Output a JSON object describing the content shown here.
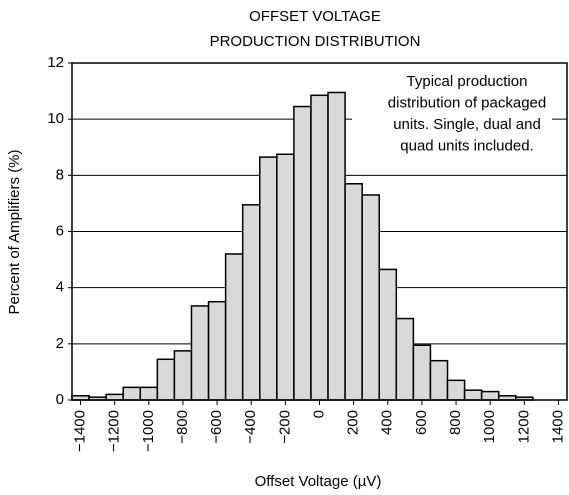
{
  "chart_data": {
    "type": "histogram",
    "title": [
      "OFFSET VOLTAGE",
      "PRODUCTION DISTRIBUTION"
    ],
    "x_label": "Offset Voltage (µV)",
    "y_label": "Percent of Amplifiers (%)",
    "annotation": [
      "Typical production",
      "distribution of packaged",
      "units. Single, dual and",
      "quad units included."
    ],
    "bins": [
      -1450,
      -1350,
      -1250,
      -1150,
      -1050,
      -950,
      -850,
      -750,
      -650,
      -550,
      -450,
      -350,
      -250,
      -150,
      -50,
      50,
      150,
      250,
      350,
      450,
      550,
      650,
      750,
      850,
      950,
      1050,
      1150,
      1250
    ],
    "values": [
      0.15,
      0.1,
      0.2,
      0.45,
      0.45,
      1.45,
      1.75,
      3.35,
      3.5,
      5.2,
      6.95,
      8.65,
      8.75,
      10.45,
      10.85,
      10.95,
      7.7,
      7.3,
      4.65,
      2.9,
      1.95,
      1.4,
      0.7,
      0.35,
      0.3,
      0.15,
      0.1
    ],
    "color": "#d9d9d9",
    "xlim": [
      -1450,
      1450
    ],
    "xticks": [
      {
        "value": -1400,
        "label": "−1400"
      },
      {
        "value": -1200,
        "label": "−1200"
      },
      {
        "value": -1000,
        "label": "−1000"
      },
      {
        "value": -800,
        "label": "−800"
      },
      {
        "value": -600,
        "label": "−600"
      },
      {
        "value": -400,
        "label": "−400"
      },
      {
        "value": -200,
        "label": "−200"
      },
      0,
      200,
      400,
      600,
      800,
      1000,
      1200,
      1400
    ],
    "ylim": [
      0,
      12
    ],
    "yticks": [
      0,
      2,
      4,
      6,
      8,
      10,
      12
    ],
    "grid": true
  }
}
